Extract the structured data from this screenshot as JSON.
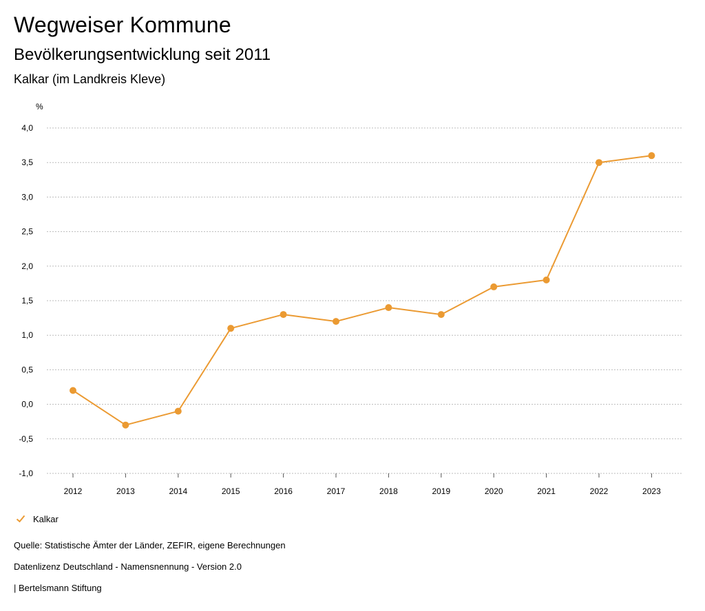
{
  "header": {
    "title": "Wegweiser Kommune",
    "subtitle": "Bevölkerungsentwicklung seit 2011",
    "region": "Kalkar (im Landkreis Kleve)"
  },
  "legend": {
    "series_name": "Kalkar",
    "icon": "check-icon"
  },
  "footer": {
    "source": "Quelle: Statistische Ämter der Länder, ZEFIR, eigene Berechnungen",
    "license": "Datenlizenz Deutschland - Namensnennung - Version 2.0",
    "publisher": "| Bertelsmann Stiftung"
  },
  "colors": {
    "series": "#EB9A32",
    "grid": "#BBBBBB",
    "text": "#000000"
  },
  "chart_data": {
    "type": "line",
    "title": "Bevölkerungsentwicklung seit 2011",
    "xlabel": "",
    "ylabel": "%",
    "categories": [
      "2012",
      "2013",
      "2014",
      "2015",
      "2016",
      "2017",
      "2018",
      "2019",
      "2020",
      "2021",
      "2022",
      "2023"
    ],
    "series": [
      {
        "name": "Kalkar",
        "values": [
          0.2,
          -0.3,
          -0.1,
          1.1,
          1.3,
          1.2,
          1.4,
          1.3,
          1.7,
          1.8,
          3.5,
          3.6
        ]
      }
    ],
    "ylim": [
      -1.0,
      4.0
    ],
    "yticks": [
      4.0,
      3.5,
      3.0,
      2.5,
      2.0,
      1.5,
      1.0,
      0.5,
      0.0,
      -0.5,
      -1.0
    ],
    "ytick_labels": [
      "4,0",
      "3,5",
      "3,0",
      "2,5",
      "2,0",
      "1,5",
      "1,0",
      "0,5",
      "0,0",
      "-0,5",
      "-1,0"
    ],
    "grid": true,
    "legend_position": "bottom-left"
  }
}
